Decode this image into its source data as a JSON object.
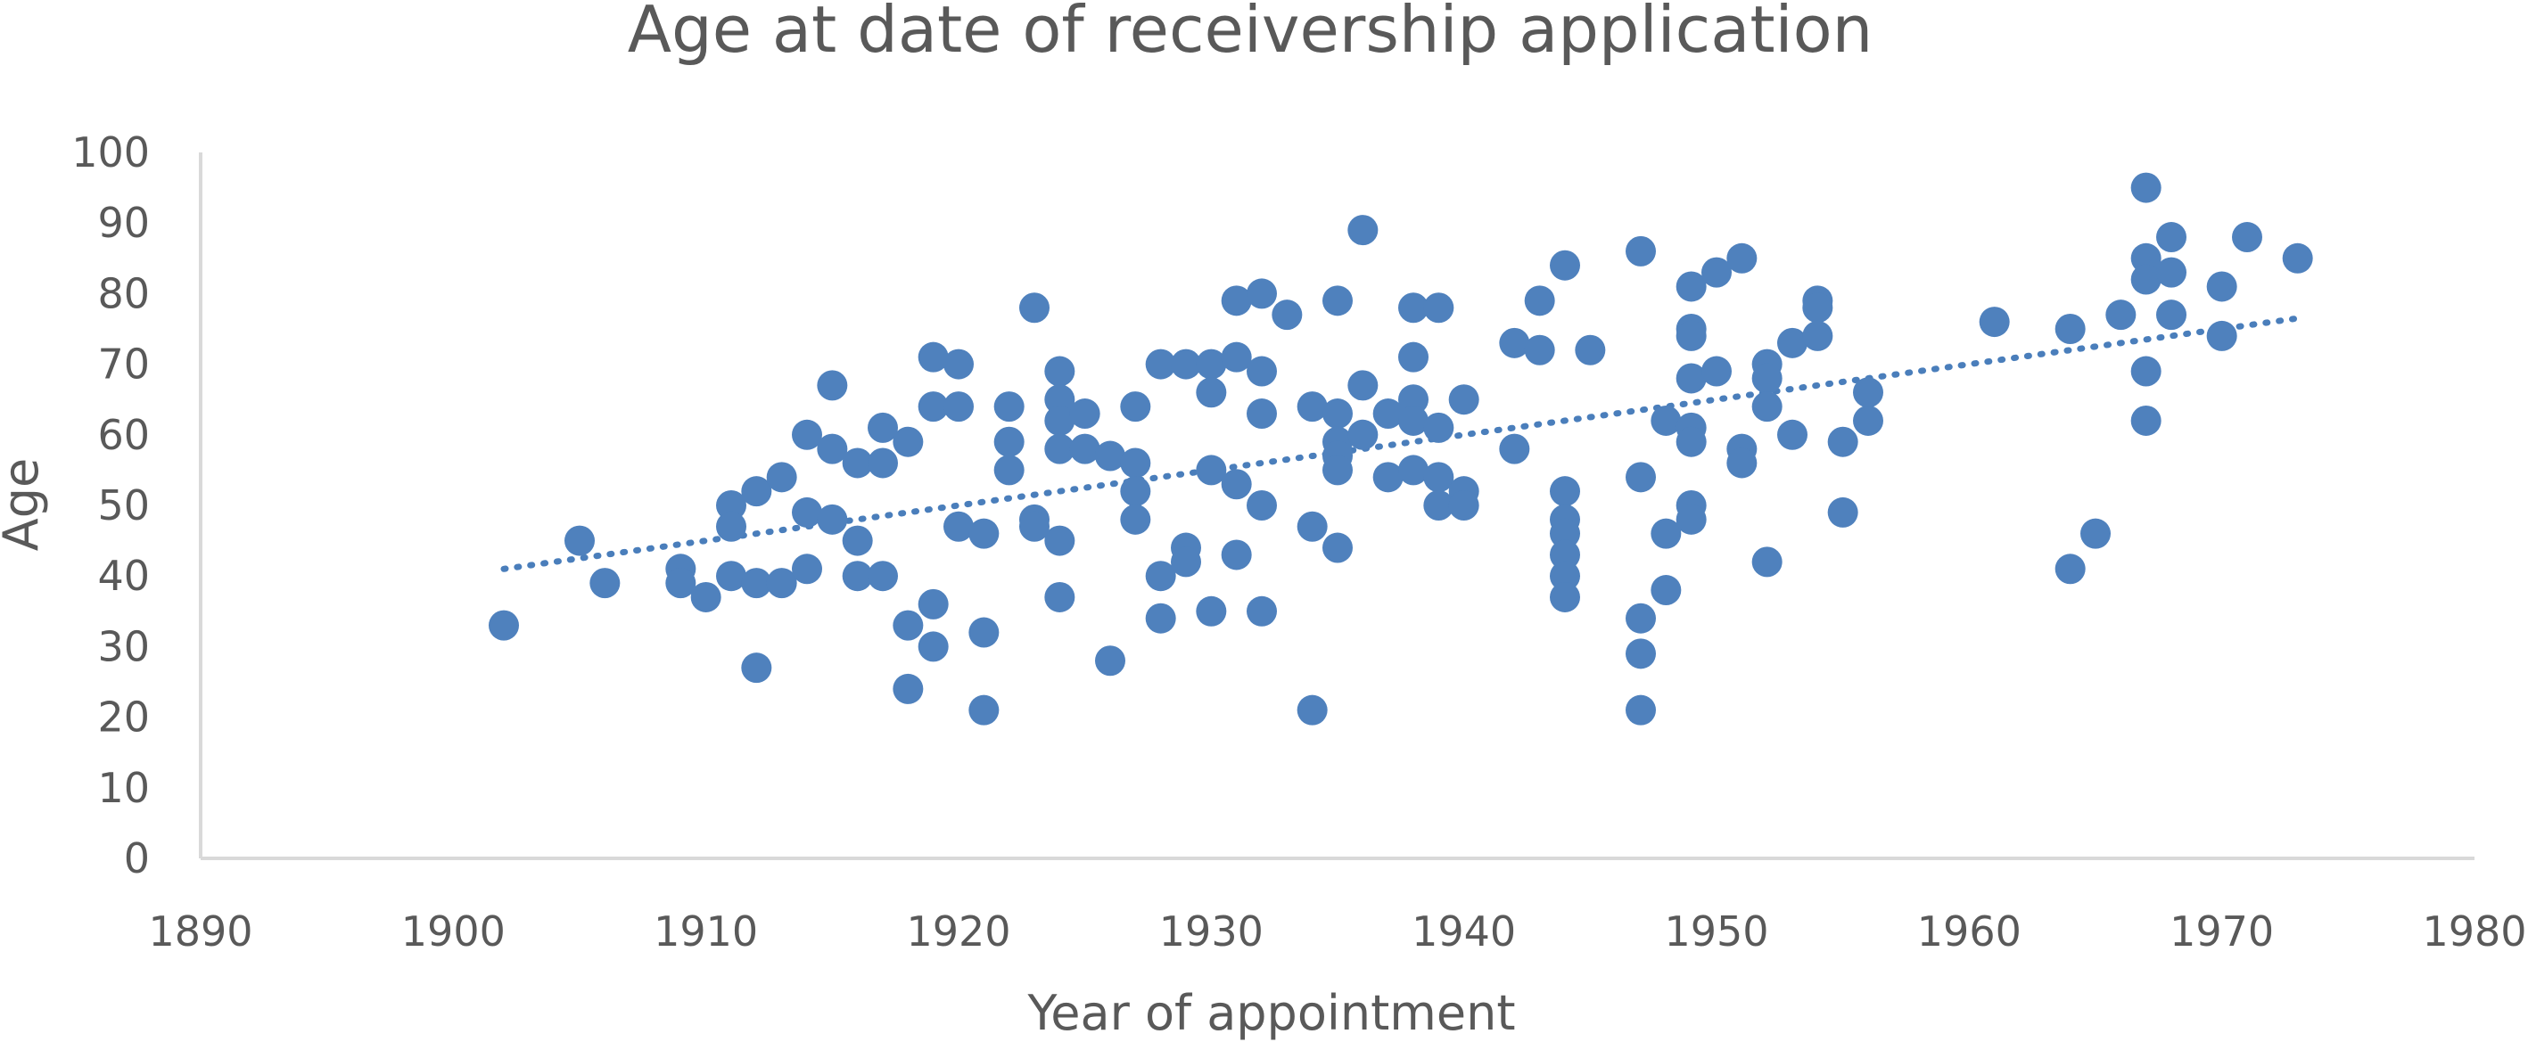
{
  "chart_data": {
    "type": "scatter",
    "title": "Age at date of receivership application",
    "xlabel": "Year of appointment",
    "ylabel": "Age",
    "xlim": [
      1890,
      1980
    ],
    "ylim": [
      0,
      100
    ],
    "x_ticks": [
      1890,
      1900,
      1910,
      1920,
      1930,
      1940,
      1950,
      1960,
      1970,
      1980
    ],
    "y_ticks": [
      0,
      10,
      20,
      30,
      40,
      50,
      60,
      70,
      80,
      90,
      100
    ],
    "grid": false,
    "legend": "none",
    "trendline": {
      "type": "linear",
      "style": "dotted",
      "x_start": 1902,
      "y_start": 41,
      "x_end": 1973,
      "y_end": 76.5
    },
    "colors": {
      "marker": "#4f81bd",
      "trendline": "#4a7ebb",
      "axis": "#d9d9d9",
      "text": "#595959"
    },
    "points": [
      [
        1902,
        33
      ],
      [
        1905,
        45
      ],
      [
        1906,
        39
      ],
      [
        1909,
        41
      ],
      [
        1909,
        39
      ],
      [
        1910,
        37
      ],
      [
        1911,
        50
      ],
      [
        1911,
        47
      ],
      [
        1911,
        40
      ],
      [
        1912,
        52
      ],
      [
        1912,
        39
      ],
      [
        1912,
        27
      ],
      [
        1913,
        54
      ],
      [
        1913,
        39
      ],
      [
        1914,
        60
      ],
      [
        1914,
        49
      ],
      [
        1914,
        41
      ],
      [
        1915,
        67
      ],
      [
        1915,
        58
      ],
      [
        1915,
        48
      ],
      [
        1916,
        56
      ],
      [
        1916,
        45
      ],
      [
        1916,
        40
      ],
      [
        1917,
        61
      ],
      [
        1917,
        56
      ],
      [
        1917,
        40
      ],
      [
        1918,
        59
      ],
      [
        1918,
        33
      ],
      [
        1918,
        24
      ],
      [
        1919,
        71
      ],
      [
        1919,
        64
      ],
      [
        1919,
        36
      ],
      [
        1919,
        30
      ],
      [
        1920,
        70
      ],
      [
        1920,
        64
      ],
      [
        1920,
        47
      ],
      [
        1921,
        46
      ],
      [
        1921,
        32
      ],
      [
        1921,
        21
      ],
      [
        1922,
        64
      ],
      [
        1922,
        59
      ],
      [
        1922,
        55
      ],
      [
        1923,
        78
      ],
      [
        1923,
        48
      ],
      [
        1923,
        47
      ],
      [
        1924,
        69
      ],
      [
        1924,
        65
      ],
      [
        1924,
        62
      ],
      [
        1924,
        58
      ],
      [
        1924,
        45
      ],
      [
        1924,
        37
      ],
      [
        1925,
        63
      ],
      [
        1925,
        58
      ],
      [
        1926,
        57
      ],
      [
        1926,
        28
      ],
      [
        1927,
        64
      ],
      [
        1927,
        56
      ],
      [
        1927,
        52
      ],
      [
        1927,
        48
      ],
      [
        1928,
        70
      ],
      [
        1928,
        40
      ],
      [
        1928,
        34
      ],
      [
        1929,
        70
      ],
      [
        1929,
        44
      ],
      [
        1929,
        42
      ],
      [
        1930,
        70
      ],
      [
        1930,
        66
      ],
      [
        1930,
        55
      ],
      [
        1930,
        35
      ],
      [
        1931,
        79
      ],
      [
        1931,
        71
      ],
      [
        1931,
        53
      ],
      [
        1931,
        43
      ],
      [
        1932,
        80
      ],
      [
        1932,
        69
      ],
      [
        1932,
        63
      ],
      [
        1932,
        50
      ],
      [
        1932,
        35
      ],
      [
        1933,
        77
      ],
      [
        1934,
        64
      ],
      [
        1934,
        47
      ],
      [
        1934,
        21
      ],
      [
        1935,
        79
      ],
      [
        1935,
        63
      ],
      [
        1935,
        59
      ],
      [
        1935,
        57
      ],
      [
        1935,
        55
      ],
      [
        1935,
        44
      ],
      [
        1936,
        89
      ],
      [
        1936,
        67
      ],
      [
        1936,
        60
      ],
      [
        1937,
        63
      ],
      [
        1937,
        54
      ],
      [
        1938,
        78
      ],
      [
        1938,
        71
      ],
      [
        1938,
        65
      ],
      [
        1938,
        62
      ],
      [
        1938,
        55
      ],
      [
        1939,
        78
      ],
      [
        1939,
        61
      ],
      [
        1939,
        54
      ],
      [
        1939,
        50
      ],
      [
        1940,
        65
      ],
      [
        1940,
        52
      ],
      [
        1940,
        50
      ],
      [
        1942,
        73
      ],
      [
        1942,
        58
      ],
      [
        1943,
        79
      ],
      [
        1943,
        72
      ],
      [
        1944,
        84
      ],
      [
        1944,
        52
      ],
      [
        1944,
        48
      ],
      [
        1944,
        46
      ],
      [
        1944,
        43
      ],
      [
        1944,
        40
      ],
      [
        1944,
        37
      ],
      [
        1945,
        72
      ],
      [
        1947,
        86
      ],
      [
        1947,
        54
      ],
      [
        1947,
        34
      ],
      [
        1947,
        29
      ],
      [
        1947,
        21
      ],
      [
        1948,
        62
      ],
      [
        1948,
        46
      ],
      [
        1948,
        38
      ],
      [
        1949,
        81
      ],
      [
        1949,
        75
      ],
      [
        1949,
        74
      ],
      [
        1949,
        68
      ],
      [
        1949,
        61
      ],
      [
        1949,
        59
      ],
      [
        1949,
        50
      ],
      [
        1949,
        48
      ],
      [
        1950,
        83
      ],
      [
        1950,
        69
      ],
      [
        1951,
        85
      ],
      [
        1951,
        58
      ],
      [
        1951,
        56
      ],
      [
        1952,
        70
      ],
      [
        1952,
        68
      ],
      [
        1952,
        64
      ],
      [
        1952,
        42
      ],
      [
        1953,
        73
      ],
      [
        1953,
        60
      ],
      [
        1954,
        79
      ],
      [
        1954,
        78
      ],
      [
        1954,
        74
      ],
      [
        1955,
        59
      ],
      [
        1955,
        49
      ],
      [
        1956,
        66
      ],
      [
        1956,
        62
      ],
      [
        1961,
        76
      ],
      [
        1964,
        75
      ],
      [
        1964,
        41
      ],
      [
        1965,
        46
      ],
      [
        1966,
        77
      ],
      [
        1967,
        95
      ],
      [
        1967,
        85
      ],
      [
        1967,
        82
      ],
      [
        1967,
        69
      ],
      [
        1967,
        62
      ],
      [
        1968,
        88
      ],
      [
        1968,
        83
      ],
      [
        1968,
        77
      ],
      [
        1970,
        81
      ],
      [
        1970,
        74
      ],
      [
        1971,
        88
      ],
      [
        1973,
        85
      ]
    ]
  }
}
